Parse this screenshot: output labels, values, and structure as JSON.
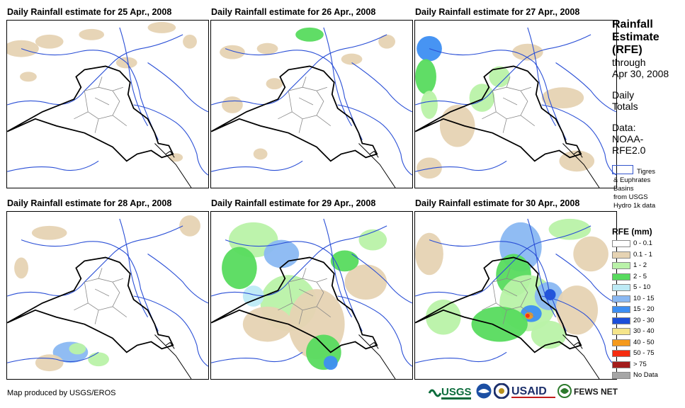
{
  "panels": [
    {
      "title": "Daily Rainfall estimate for 25 Apr., 2008"
    },
    {
      "title": "Daily Rainfall estimate for 26 Apr., 2008"
    },
    {
      "title": "Daily Rainfall estimate for 27 Apr., 2008"
    },
    {
      "title": "Daily Rainfall estimate for 28 Apr., 2008"
    },
    {
      "title": "Daily Rainfall estimate for 29 Apr., 2008"
    },
    {
      "title": "Daily Rainfall estimate for 30 Apr., 2008"
    }
  ],
  "sidebar": {
    "title_lines": [
      "Rainfall",
      "Estimate",
      "(RFE)"
    ],
    "through_lines": [
      "through",
      "Apr 30, 2008"
    ],
    "totals_lines": [
      "Daily",
      "Totals"
    ],
    "data_lines": [
      "Data:",
      "NOAA-",
      "RFE2.0"
    ],
    "basin_lines": [
      "Tigres",
      "& Euphrates",
      "Basins",
      "from USGS",
      "Hydro 1k data"
    ]
  },
  "legend": {
    "title": "RFE (mm)",
    "items": [
      {
        "label": "0 - 0.1",
        "color": "#ffffff"
      },
      {
        "label": "0.1 - 1",
        "color": "#e6d3b3"
      },
      {
        "label": "1 - 2",
        "color": "#b9f2a8"
      },
      {
        "label": "2 - 5",
        "color": "#57db5e"
      },
      {
        "label": "5 - 10",
        "color": "#bdeaf5"
      },
      {
        "label": "10 - 15",
        "color": "#8ab8f2"
      },
      {
        "label": "15 - 20",
        "color": "#3d8ef2"
      },
      {
        "label": "20 - 30",
        "color": "#1c4fd9"
      },
      {
        "label": "30 - 40",
        "color": "#f5e58a"
      },
      {
        "label": "40 - 50",
        "color": "#f59a1c"
      },
      {
        "label": "50 - 75",
        "color": "#f52c0f"
      },
      {
        "label": "> 75",
        "color": "#a31c1c"
      },
      {
        "label": "No Data",
        "color": "#a6a6a6"
      }
    ]
  },
  "footer": {
    "credit": "Map produced by USGS/EROS"
  },
  "logos": {
    "usgs": "USGS",
    "usaid": "USAID",
    "fews": "FEWS NET"
  }
}
